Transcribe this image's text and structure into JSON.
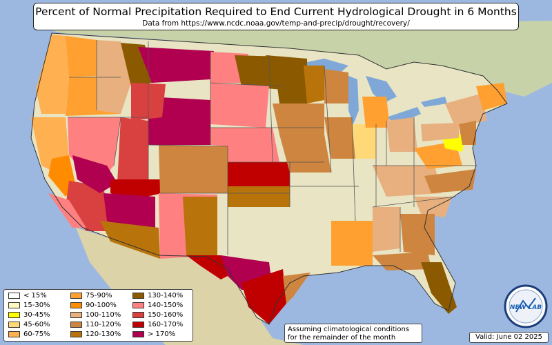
{
  "title": "Percent of Normal Precipitation Required to End Current Hydrological Drought in 6 Months",
  "subtitle": "Data from https://www.ncdc.noaa.gov/temp-and-precip/drought/recovery/",
  "note": {
    "line1": "Assuming climatological conditions",
    "line2": "for the remainder of the month"
  },
  "valid": "Valid: June 02 2025",
  "logo_text": "NEW LAB",
  "legend": [
    {
      "label": "< 15%",
      "color": "#ffffff"
    },
    {
      "label": "15-30%",
      "color": "#fff8c0"
    },
    {
      "label": "30-45%",
      "color": "#ffff00"
    },
    {
      "label": "45-60%",
      "color": "#ffd878"
    },
    {
      "label": "60-75%",
      "color": "#ffb050"
    },
    {
      "label": "75-90%",
      "color": "#ffa030"
    },
    {
      "label": "90-100%",
      "color": "#ff8c00"
    },
    {
      "label": "100-110%",
      "color": "#e8b07e"
    },
    {
      "label": "110-120%",
      "color": "#cd853f"
    },
    {
      "label": "120-130%",
      "color": "#b8730a"
    },
    {
      "label": "130-140%",
      "color": "#8b5a00"
    },
    {
      "label": "140-150%",
      "color": "#ff8080"
    },
    {
      "label": "150-160%",
      "color": "#d94040"
    },
    {
      "label": "160-170%",
      "color": "#c00000"
    },
    {
      "label": "> 170%",
      "color": "#b0004f"
    }
  ],
  "colors": {
    "ocean": "#9db8e0",
    "land": "#e8e4c4",
    "land_east": "#dfe3b8",
    "mexico": "#ddd3a8",
    "canada": "#c8d2a8",
    "state_line": "#555555"
  }
}
